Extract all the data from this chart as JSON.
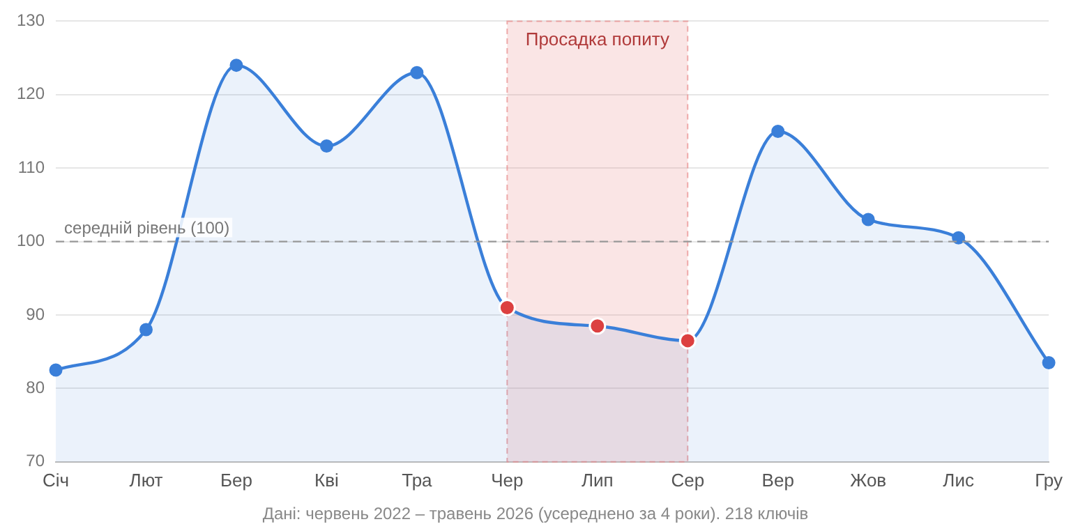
{
  "chart_data": {
    "type": "area",
    "categories": [
      "Січ",
      "Лют",
      "Бер",
      "Кві",
      "Тра",
      "Чер",
      "Лип",
      "Сер",
      "Вер",
      "Жов",
      "Лис",
      "Гру"
    ],
    "series": [
      {
        "color": "#3a7fd9",
        "colors": [
          "#3a7fd9",
          "#3a7fd9",
          "#3a7fd9",
          "#3a7fd9",
          "#3a7fd9",
          "#dc4040",
          "#dc4040",
          "#dc4040",
          "#3a7fd9",
          "#3a7fd9",
          "#3a7fd9",
          "#3a7fd9"
        ],
        "values": [
          82.5,
          88,
          124,
          113,
          123,
          91,
          88.5,
          86.5,
          115,
          103,
          100.5,
          83.5
        ]
      }
    ],
    "ylim": [
      70,
      130
    ],
    "yticks": [
      70,
      80,
      90,
      100,
      110,
      120,
      130
    ],
    "grid": "y",
    "legend": false,
    "marker": "circle",
    "ref_lines": [
      {
        "axis": "y",
        "value": 100,
        "label": "середній рівень (100)",
        "color": "#999999",
        "line_style": "dashed"
      }
    ],
    "bands": [
      {
        "axis": "x",
        "from": "Чер",
        "to": "Сер",
        "label": "Просадка попиту",
        "color": "#e88a8a"
      }
    ],
    "annotations": [
      "Дані: червень 2022 – травень 2026 (усереднено за 4 роки). 218 ключів"
    ]
  }
}
